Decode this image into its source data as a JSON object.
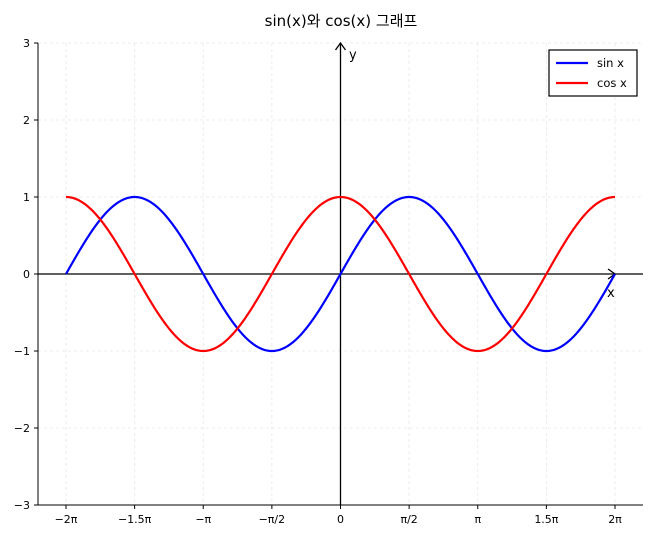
{
  "chart_data": {
    "type": "line",
    "title": "sin(x)와 cos(x) 그래프",
    "xlabel": "x",
    "ylabel": "y",
    "xlim": [
      -6.2832,
      6.2832
    ],
    "ylim": [
      -3,
      3
    ],
    "grid": true,
    "legend_position": "top-right",
    "x_ticks": [
      {
        "value": -6.2832,
        "label": "−2π"
      },
      {
        "value": -4.7124,
        "label": "−1.5π"
      },
      {
        "value": -3.1416,
        "label": "−π"
      },
      {
        "value": -1.5708,
        "label": "−π/2"
      },
      {
        "value": 0,
        "label": "0"
      },
      {
        "value": 1.5708,
        "label": "π/2"
      },
      {
        "value": 3.1416,
        "label": "π"
      },
      {
        "value": 4.7124,
        "label": "1.5π"
      },
      {
        "value": 6.2832,
        "label": "2π"
      }
    ],
    "y_ticks": [
      {
        "value": -3,
        "label": "−3"
      },
      {
        "value": -2,
        "label": "−2"
      },
      {
        "value": -1,
        "label": "−1"
      },
      {
        "value": 0,
        "label": "0"
      },
      {
        "value": 1,
        "label": "1"
      },
      {
        "value": 2,
        "label": "2"
      },
      {
        "value": 3,
        "label": "3"
      }
    ],
    "series": [
      {
        "name": "sin x",
        "color": "#0000ff",
        "x": [
          -6.2832,
          -5.4978,
          -4.7124,
          -3.927,
          -3.1416,
          -2.3562,
          -1.5708,
          -0.7854,
          0,
          0.7854,
          1.5708,
          2.3562,
          3.1416,
          3.927,
          4.7124,
          5.4978,
          6.2832
        ],
        "y": [
          0,
          0.7071,
          1,
          0.7071,
          0,
          -0.7071,
          -1,
          -0.7071,
          0,
          0.7071,
          1,
          0.7071,
          0,
          -0.7071,
          -1,
          -0.7071,
          0
        ]
      },
      {
        "name": "cos x",
        "color": "#ff0000",
        "x": [
          -6.2832,
          -5.4978,
          -4.7124,
          -3.927,
          -3.1416,
          -2.3562,
          -1.5708,
          -0.7854,
          0,
          0.7854,
          1.5708,
          2.3562,
          3.1416,
          3.927,
          4.7124,
          5.4978,
          6.2832
        ],
        "y": [
          1,
          0.7071,
          0,
          -0.7071,
          -1,
          -0.7071,
          0,
          0.7071,
          1,
          0.7071,
          0,
          -0.7071,
          -1,
          -0.7071,
          0,
          0.7071,
          1
        ]
      }
    ]
  }
}
